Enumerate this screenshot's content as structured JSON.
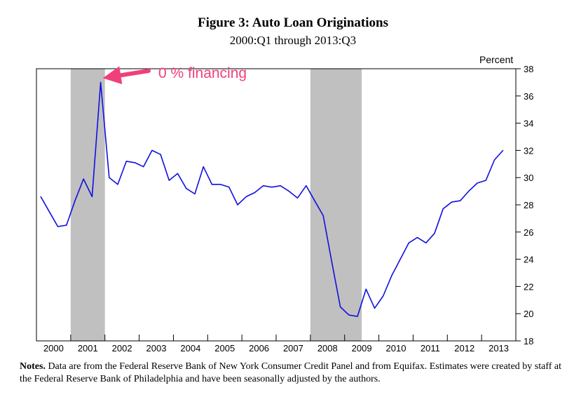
{
  "chart_data": {
    "type": "line",
    "title": "Figure 3:  Auto Loan Originations",
    "subtitle": "2000:Q1 through 2013:Q3",
    "ylabel": "Percent",
    "ylim": [
      18,
      38
    ],
    "yticks": [
      18,
      20,
      22,
      24,
      26,
      28,
      30,
      32,
      34,
      36,
      38
    ],
    "xticks": [
      "2000",
      "2001",
      "2002",
      "2003",
      "2004",
      "2005",
      "2006",
      "2007",
      "2008",
      "2009",
      "2010",
      "2011",
      "2012",
      "2013"
    ],
    "grid": false,
    "y_axis_side": "right",
    "series": [
      {
        "color": "#1010e0",
        "points": [
          [
            "2000:Q1",
            28.6
          ],
          [
            "2000:Q2",
            27.5
          ],
          [
            "2000:Q3",
            26.4
          ],
          [
            "2000:Q4",
            26.5
          ],
          [
            "2001:Q1",
            28.3
          ],
          [
            "2001:Q2",
            29.9
          ],
          [
            "2001:Q3",
            28.6
          ],
          [
            "2001:Q4",
            37.0
          ],
          [
            "2002:Q1",
            30.0
          ],
          [
            "2002:Q2",
            29.5
          ],
          [
            "2002:Q3",
            31.2
          ],
          [
            "2002:Q4",
            31.1
          ],
          [
            "2003:Q1",
            30.8
          ],
          [
            "2003:Q2",
            32.0
          ],
          [
            "2003:Q3",
            31.7
          ],
          [
            "2003:Q4",
            29.8
          ],
          [
            "2004:Q1",
            30.3
          ],
          [
            "2004:Q2",
            29.2
          ],
          [
            "2004:Q3",
            28.8
          ],
          [
            "2004:Q4",
            30.8
          ],
          [
            "2005:Q1",
            29.5
          ],
          [
            "2005:Q2",
            29.5
          ],
          [
            "2005:Q3",
            29.3
          ],
          [
            "2005:Q4",
            28.0
          ],
          [
            "2006:Q1",
            28.6
          ],
          [
            "2006:Q2",
            28.9
          ],
          [
            "2006:Q3",
            29.4
          ],
          [
            "2006:Q4",
            29.3
          ],
          [
            "2007:Q1",
            29.4
          ],
          [
            "2007:Q2",
            29.0
          ],
          [
            "2007:Q3",
            28.5
          ],
          [
            "2007:Q4",
            29.4
          ],
          [
            "2008:Q1",
            28.3
          ],
          [
            "2008:Q2",
            27.2
          ],
          [
            "2008:Q3",
            23.8
          ],
          [
            "2008:Q4",
            20.5
          ],
          [
            "2009:Q1",
            19.9
          ],
          [
            "2009:Q2",
            19.8
          ],
          [
            "2009:Q3",
            21.8
          ],
          [
            "2009:Q4",
            20.4
          ],
          [
            "2010:Q1",
            21.3
          ],
          [
            "2010:Q2",
            22.8
          ],
          [
            "2010:Q3",
            24.0
          ],
          [
            "2010:Q4",
            25.2
          ],
          [
            "2011:Q1",
            25.6
          ],
          [
            "2011:Q2",
            25.2
          ],
          [
            "2011:Q3",
            25.9
          ],
          [
            "2011:Q4",
            27.7
          ],
          [
            "2012:Q1",
            28.2
          ],
          [
            "2012:Q2",
            28.3
          ],
          [
            "2012:Q3",
            29.0
          ],
          [
            "2012:Q4",
            29.6
          ],
          [
            "2013:Q1",
            29.8
          ],
          [
            "2013:Q2",
            31.3
          ],
          [
            "2013:Q3",
            32.0
          ]
        ]
      }
    ],
    "shaded_periods": [
      {
        "start": "2001:Q1",
        "end": "2001:Q4"
      },
      {
        "start": "2008:Q1",
        "end": "2009:Q2"
      }
    ],
    "annotations": [
      {
        "text": "0 % financing",
        "color": "#f0407a",
        "points_to": "2001:Q4"
      }
    ]
  },
  "notes": {
    "label": "Notes.",
    "text": "Data are from the Federal Reserve Bank of New York Consumer Credit Panel and from Equifax.  Estimates were created by staff at the Federal Reserve Bank of Philadelphia and have been seasonally adjusted by the authors."
  },
  "colors": {
    "line": "#1010e0",
    "recession_shade": "#c0c0c0",
    "annotation": "#f0407a"
  }
}
